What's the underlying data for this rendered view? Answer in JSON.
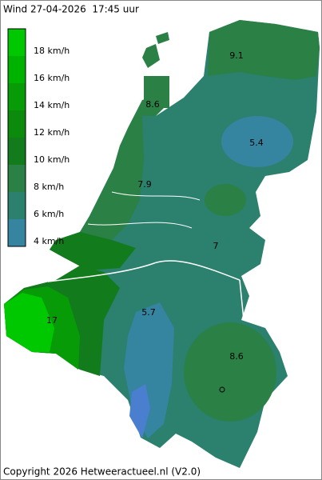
{
  "title": "Wind 27-04-2026  17:45 uur",
  "legend": {
    "items": [
      {
        "label": "18 km/h",
        "color": "#00c800"
      },
      {
        "label": "16 km/h",
        "color": "#00b200"
      },
      {
        "label": "14 km/h",
        "color": "#079c07"
      },
      {
        "label": "12 km/h",
        "color": "#0b8a0b"
      },
      {
        "label": "10 km/h",
        "color": "#127b1b"
      },
      {
        "label": "8 km/h",
        "color": "#2a8045"
      },
      {
        "label": "6 km/h",
        "color": "#2b806e"
      },
      {
        "label": "4 km/h",
        "color": "#3584a0"
      }
    ]
  },
  "contour_labels": [
    "9.1",
    "8.6",
    "5.4",
    "7.9",
    "7",
    "17",
    "5.7",
    "8.6"
  ],
  "copyright": "Copyright 2026 Hetweeractueel.nl (V2.0)"
}
